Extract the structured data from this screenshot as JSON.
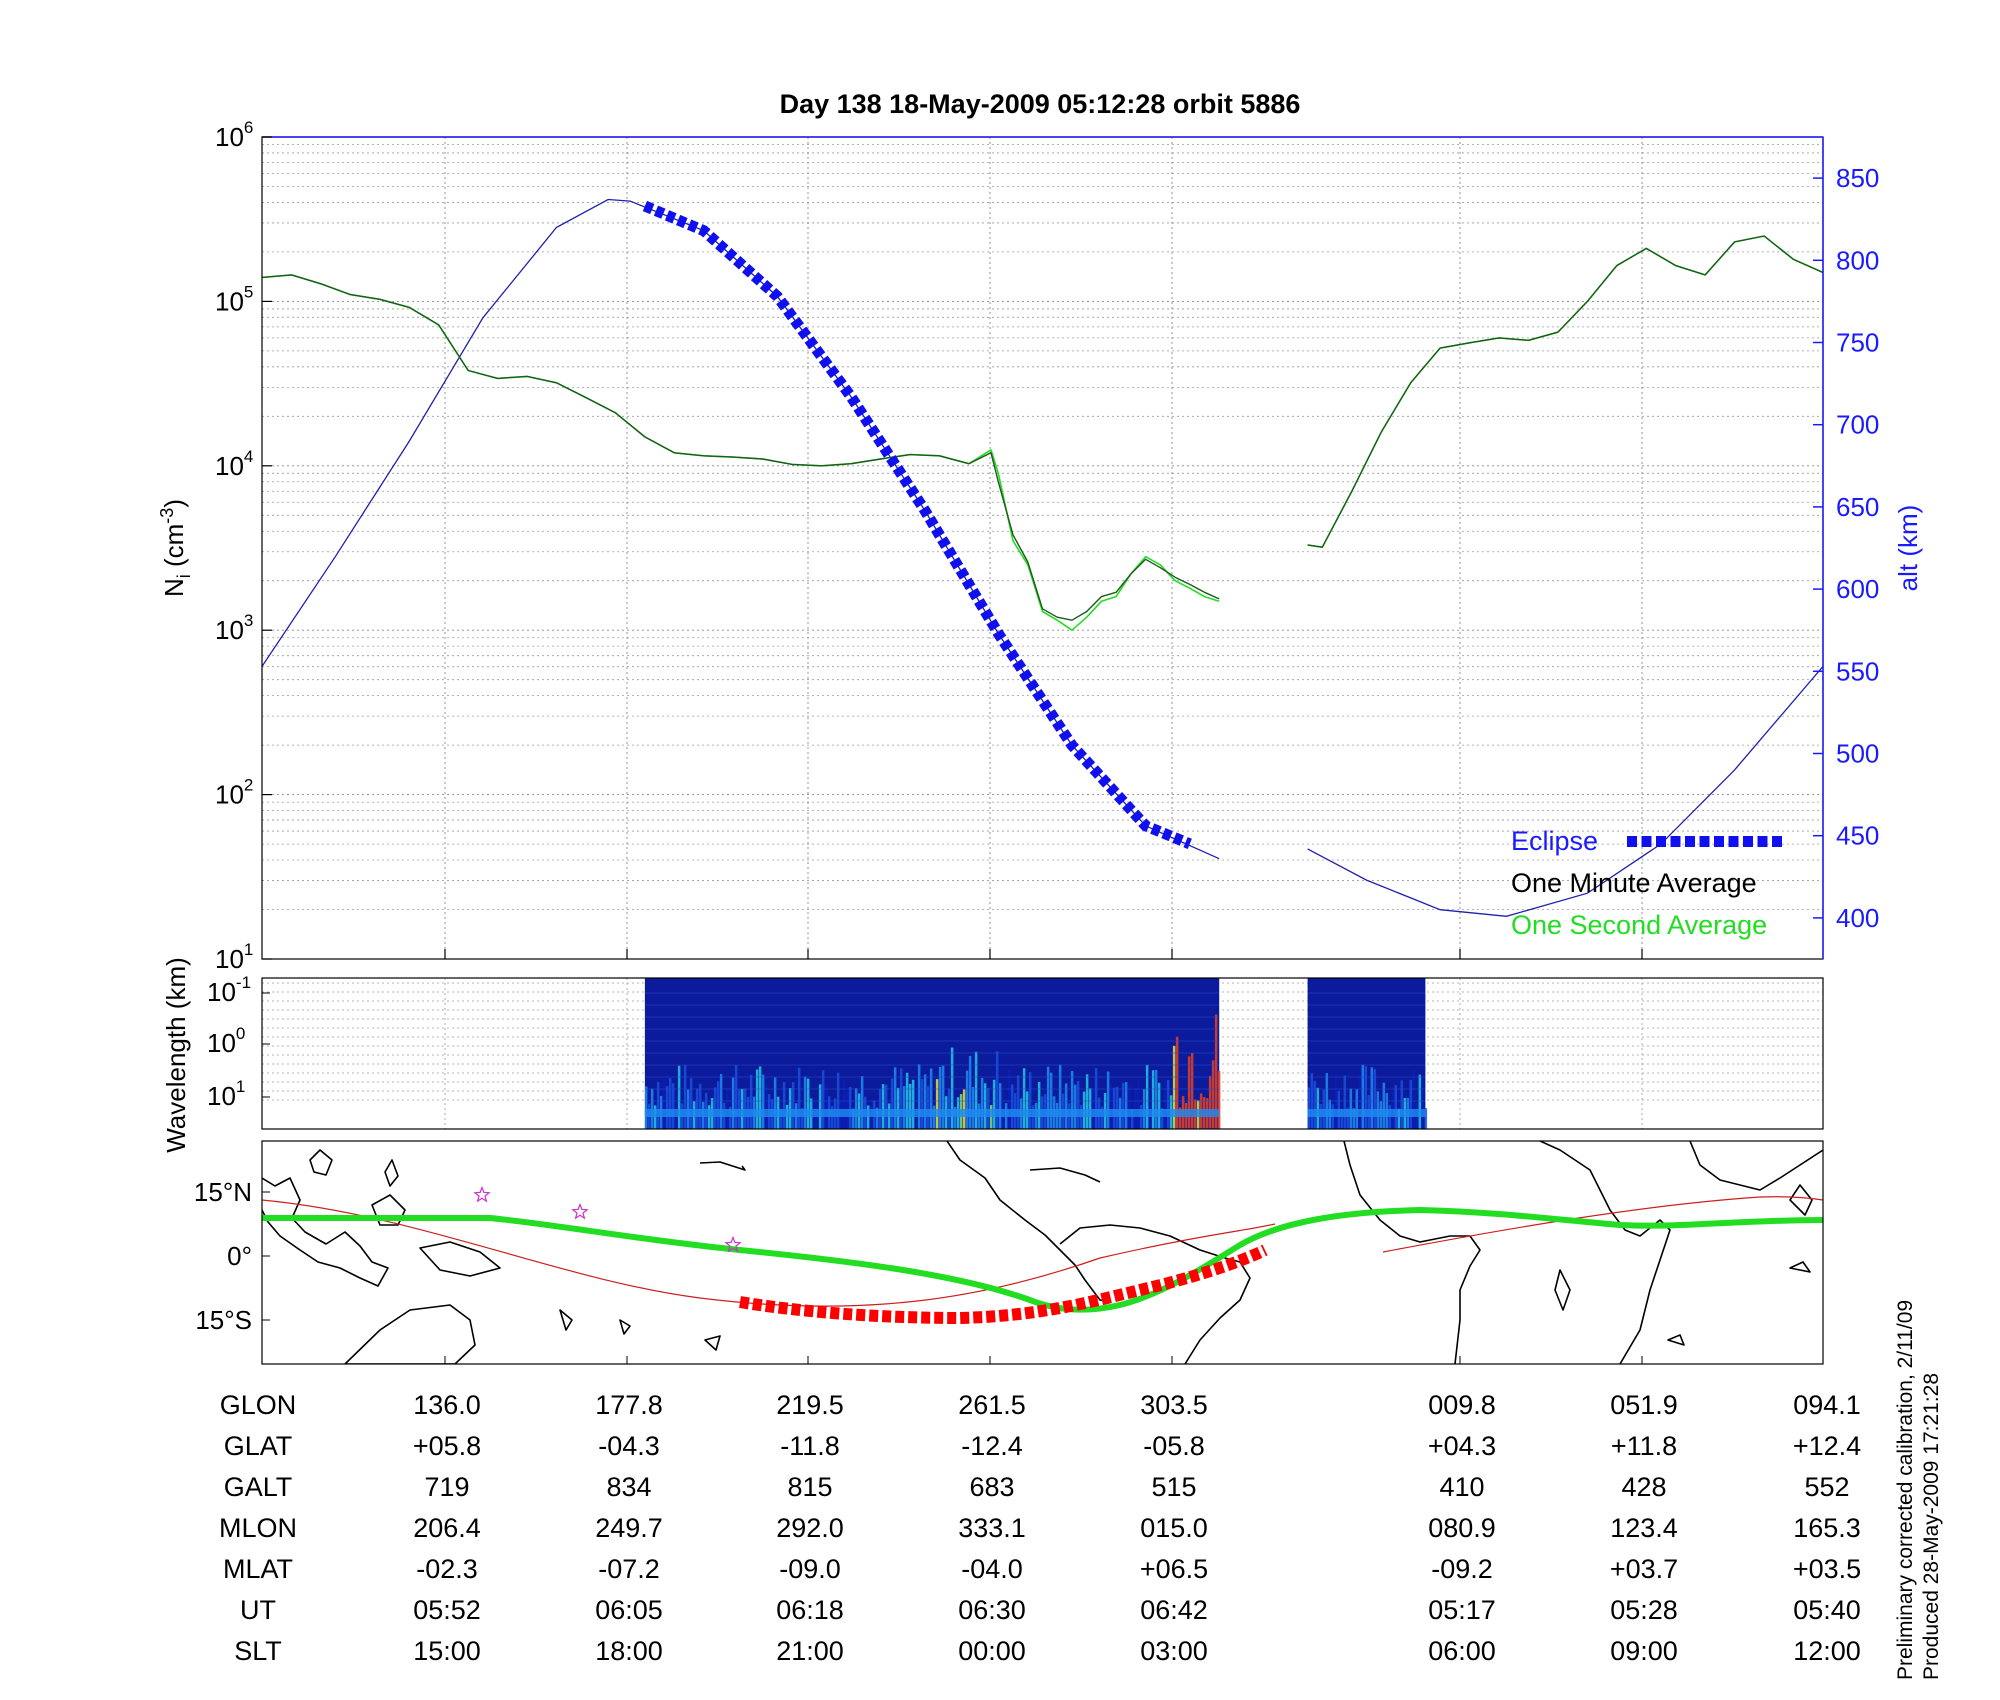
{
  "title": "Day 138  18-May-2009 05:12:28   orbit 5886",
  "colors": {
    "blue": "#1a1aff",
    "one_second_green": "#22dd22",
    "one_minute_black": "#000000",
    "density_green": "#1a7a1a",
    "eclipse_blue": "#1010ee",
    "red_track": "#ff0000",
    "star_magenta": "#cc33cc"
  },
  "footer": {
    "line1": "Preliminary corrected calibration, 2/11/09",
    "line2": "Produced 28-May-2009 17:21:28"
  },
  "chart_data": [
    {
      "type": "line",
      "panel": "ion density and altitude",
      "ylabel_main": "N",
      "ylabel_sub": "i",
      "ylabel_unit_open": " (cm",
      "ylabel_unit_exp": "-3",
      "ylabel_unit_close": ")",
      "y_scale": "log",
      "ylim": [
        10,
        1000000
      ],
      "y_ticks": [
        {
          "base": "10",
          "exp": "1"
        },
        {
          "base": "10",
          "exp": "2"
        },
        {
          "base": "10",
          "exp": "3"
        },
        {
          "base": "10",
          "exp": "4"
        },
        {
          "base": "10",
          "exp": "5"
        },
        {
          "base": "10",
          "exp": "6"
        }
      ],
      "y2label": "alt (km)",
      "y2lim": [
        375,
        875
      ],
      "y2_ticks": [
        "400",
        "450",
        "500",
        "550",
        "600",
        "650",
        "700",
        "750",
        "800",
        "850"
      ],
      "grid": true,
      "x_note": "x axis spans the orbit; positions correspond to the ephemeris columns below",
      "series": [
        {
          "name": "One Second Average",
          "segments": [
            {
              "x": [
                -1.0,
                -0.8,
                -0.6,
                -0.4,
                -0.2,
                0.0,
                0.2,
                0.4,
                0.6,
                0.8,
                1.0,
                1.2,
                1.4,
                1.6,
                1.8,
                2.0,
                2.2,
                2.4,
                2.6,
                2.8,
                3.0,
                3.2,
                3.4,
                3.6,
                3.8,
                3.95,
                4.0,
                4.1,
                4.2,
                4.3,
                4.4,
                4.5,
                4.6,
                4.7,
                4.8,
                4.9,
                5.0,
                5.1,
                5.2,
                5.3,
                5.4,
                5.5
              ],
              "y": [
                140000,
                145000,
                128000,
                110000,
                103000,
                92000,
                72000,
                38000,
                34000,
                35000,
                32000,
                26000,
                21000,
                15000,
                12000,
                11500,
                11300,
                11000,
                10200,
                10000,
                10300,
                11000,
                11700,
                11500,
                10300,
                12500,
                9000,
                3500,
                2500,
                1300,
                1150,
                1000,
                1200,
                1500,
                1600,
                2200,
                2800,
                2500,
                2000,
                1800,
                1600,
                1500
              ]
            },
            {
              "x": [
                6.1,
                6.2,
                6.4,
                6.6,
                6.8,
                7.0,
                7.2,
                7.4,
                7.6,
                7.8,
                8.0,
                8.2,
                8.4,
                8.6,
                8.8,
                9.0,
                9.2,
                9.4,
                9.6
              ],
              "y": [
                3300,
                3200,
                7000,
                16000,
                32000,
                52000,
                56000,
                60000,
                58000,
                65000,
                100000,
                165000,
                210000,
                165000,
                145000,
                230000,
                250000,
                180000,
                150000
              ]
            }
          ]
        },
        {
          "name": "One Minute Average",
          "segments": [
            {
              "x": [
                -1.0,
                -0.8,
                -0.6,
                -0.4,
                -0.2,
                0.0,
                0.2,
                0.4,
                0.6,
                0.8,
                1.0,
                1.2,
                1.4,
                1.6,
                1.8,
                2.0,
                2.2,
                2.4,
                2.6,
                2.8,
                3.0,
                3.2,
                3.4,
                3.6,
                3.8,
                3.95,
                4.0,
                4.1,
                4.2,
                4.3,
                4.4,
                4.5,
                4.6,
                4.7,
                4.8,
                4.9,
                5.0,
                5.1,
                5.2,
                5.3,
                5.4,
                5.5
              ],
              "y": [
                140000,
                145000,
                128000,
                110000,
                103000,
                92000,
                72000,
                38000,
                34000,
                35000,
                32000,
                26000,
                21000,
                15000,
                12000,
                11500,
                11300,
                11000,
                10200,
                10000,
                10300,
                11000,
                11700,
                11500,
                10300,
                12000,
                8000,
                3800,
                2600,
                1350,
                1200,
                1150,
                1300,
                1600,
                1700,
                2200,
                2700,
                2400,
                2100,
                1900,
                1700,
                1550
              ]
            },
            {
              "x": [
                6.1,
                6.2,
                6.4,
                6.6,
                6.8,
                7.0,
                7.2,
                7.4,
                7.6,
                7.8,
                8.0,
                8.2,
                8.4,
                8.6,
                8.8,
                9.0,
                9.2,
                9.4,
                9.6
              ],
              "y": [
                3300,
                3200,
                7000,
                16000,
                32000,
                52000,
                56000,
                60000,
                58000,
                65000,
                100000,
                165000,
                210000,
                165000,
                145000,
                230000,
                250000,
                180000,
                150000
              ]
            }
          ]
        },
        {
          "name": "alt (km)",
          "axis": "right",
          "segments": [
            {
              "x": [
                -1.0,
                -0.5,
                0.0,
                0.5,
                1.0,
                1.35,
                1.5,
                2.0,
                2.5,
                3.0,
                3.5,
                4.0,
                4.5,
                5.0,
                5.5
              ],
              "y": [
                553,
                620,
                690,
                765,
                820,
                837,
                836,
                818,
                778,
                717,
                648,
                573,
                505,
                456,
                436
              ]
            },
            {
              "x": [
                6.1,
                6.5,
                7.0,
                7.45,
                8.0,
                8.5,
                9.0,
                9.6
              ],
              "y": [
                442,
                423,
                405,
                401,
                415,
                445,
                490,
                553
              ]
            }
          ]
        },
        {
          "name": "Eclipse",
          "axis": "right",
          "x": [
            1.6,
            2.0,
            2.5,
            3.0,
            3.5,
            4.0,
            4.5,
            5.0,
            5.3
          ],
          "y": [
            833,
            818,
            778,
            717,
            648,
            573,
            505,
            456,
            445
          ]
        }
      ]
    },
    {
      "type": "heatmap",
      "panel": "irregularity spectrogram",
      "ylabel": "Wavelength (km)",
      "y_ticks": [
        {
          "base": "10",
          "exp": "-1"
        },
        {
          "base": "10",
          "exp": "0"
        },
        {
          "base": "10",
          "exp": "1"
        }
      ],
      "data_intervals_x": [
        [
          1.6,
          5.5
        ],
        [
          6.1,
          6.9
        ]
      ]
    },
    {
      "type": "map",
      "panel": "orbit ground track",
      "y_ticks": [
        "15°N",
        "0°",
        "15°S"
      ],
      "stars": 3
    }
  ],
  "ephemeris": {
    "rows": [
      {
        "label": "GLON",
        "values": [
          "136.0",
          "177.8",
          "219.5",
          "261.5",
          "303.5",
          "009.8",
          "051.9",
          "094.1"
        ]
      },
      {
        "label": "GLAT",
        "values": [
          "+05.8",
          "-04.3",
          "-11.8",
          "-12.4",
          "-05.8",
          "+04.3",
          "+11.8",
          "+12.4"
        ]
      },
      {
        "label": "GALT",
        "values": [
          "719",
          "834",
          "815",
          "683",
          "515",
          "410",
          "428",
          "552"
        ]
      },
      {
        "label": "MLON",
        "values": [
          "206.4",
          "249.7",
          "292.0",
          "333.1",
          "015.0",
          "080.9",
          "123.4",
          "165.3"
        ]
      },
      {
        "label": "MLAT",
        "values": [
          "-02.3",
          "-07.2",
          "-09.0",
          "-04.0",
          "+06.5",
          "-09.2",
          "+03.7",
          "+03.5"
        ]
      },
      {
        "label": "UT",
        "values": [
          "05:52",
          "06:05",
          "06:18",
          "06:30",
          "06:42",
          "05:17",
          "05:28",
          "05:40"
        ]
      },
      {
        "label": "SLT",
        "values": [
          "15:00",
          "18:00",
          "21:00",
          "00:00",
          "03:00",
          "06:00",
          "09:00",
          "12:00"
        ]
      }
    ]
  }
}
